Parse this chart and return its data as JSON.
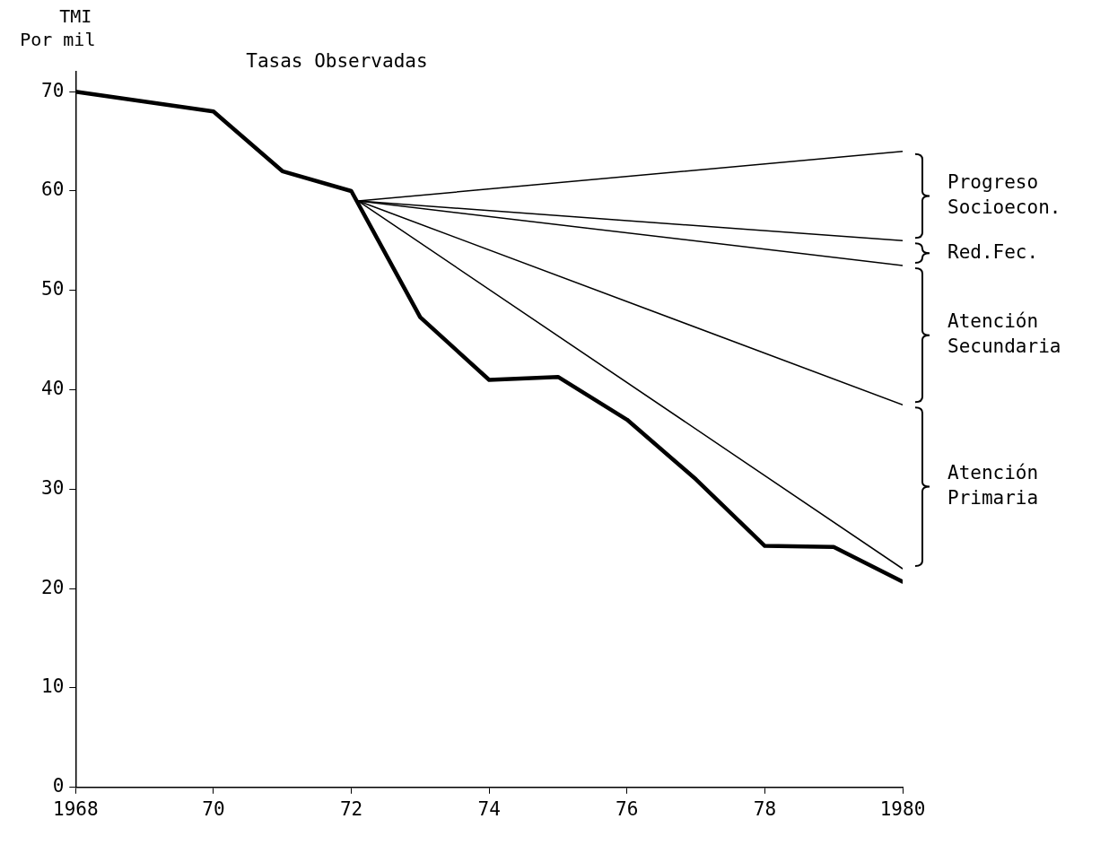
{
  "chart_data": {
    "type": "line",
    "ylabel": "TMI\nPor mil",
    "xlim": [
      1968,
      1980
    ],
    "ylim": [
      0,
      72
    ],
    "xticks": [
      1968,
      {
        "value": 1970,
        "label": "70"
      },
      {
        "value": 1972,
        "label": "72"
      },
      {
        "value": 1974,
        "label": "74"
      },
      {
        "value": 1976,
        "label": "76"
      },
      {
        "value": 1978,
        "label": "78"
      },
      1980
    ],
    "yticks": [
      0,
      10,
      20,
      30,
      40,
      50,
      60,
      70
    ],
    "grid": false,
    "legend": false,
    "marker": "none",
    "line_style": "solid",
    "series": [
      {
        "color": "#000000",
        "x": [
          1968,
          1970,
          1971,
          1972,
          1973,
          1974,
          1975,
          1976,
          1977,
          1978,
          1979,
          1980
        ],
        "values": [
          70,
          68,
          62,
          60,
          47.3,
          41,
          41.3,
          37,
          31,
          24.3,
          24.2,
          20.7
        ]
      },
      {
        "color": "#000000",
        "x": [
          1972.1,
          1980
        ],
        "values": [
          59,
          64
        ]
      },
      {
        "color": "#000000",
        "x": [
          1972.1,
          1980
        ],
        "values": [
          59,
          55
        ]
      },
      {
        "color": "#000000",
        "x": [
          1972.1,
          1980
        ],
        "values": [
          59,
          52.5
        ]
      },
      {
        "color": "#000000",
        "x": [
          1972.1,
          1980
        ],
        "values": [
          59,
          38.5
        ]
      },
      {
        "color": "#000000",
        "x": [
          1972.1,
          1980
        ],
        "values": [
          59,
          22
        ]
      }
    ],
    "annotations": [
      "Tasas Observadas",
      "Progreso\nSocioecon.",
      "Red.Fec.",
      "Atención\nSecundaria",
      "Atención\nPrimaria"
    ]
  }
}
